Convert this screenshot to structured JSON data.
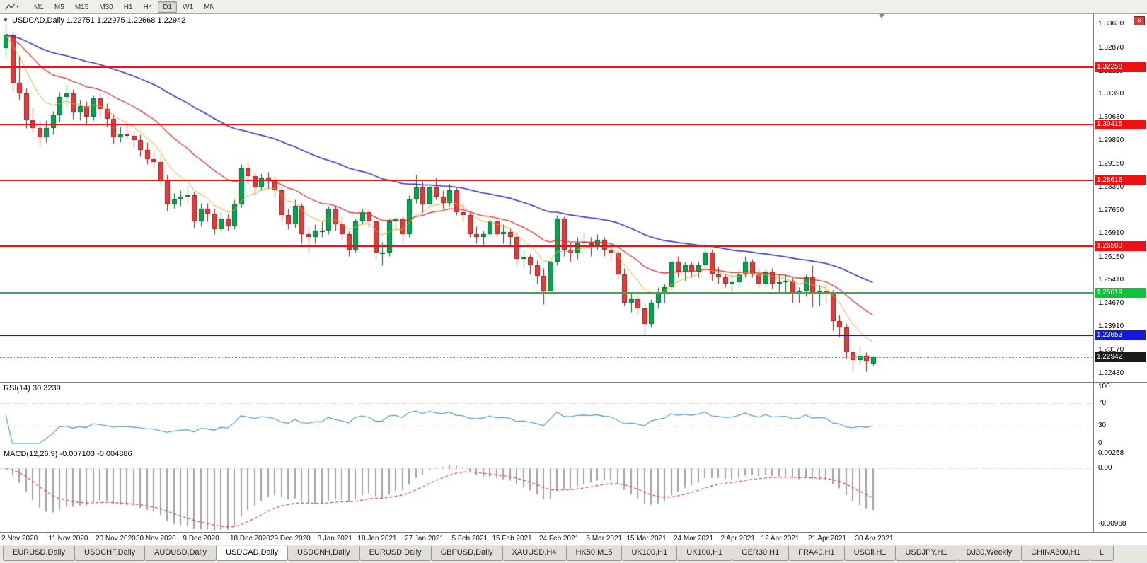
{
  "icons": {
    "collapse": "▼",
    "caret": "▾",
    "close": "✕"
  },
  "toolbar": {
    "timeframes": [
      "M1",
      "M5",
      "M15",
      "M30",
      "H1",
      "H4",
      "D1",
      "W1",
      "MN"
    ],
    "active_timeframe": "D1"
  },
  "window": {
    "close_label": "✕"
  },
  "colors": {
    "candle_up": "#00a651",
    "candle_up_border": "#00672f",
    "candle_down": "#e23b3b",
    "candle_down_border": "#941f1f",
    "axis_border": "#7e7e7e",
    "background": "#ffffff"
  },
  "tabs": {
    "items": [
      "EURUSD,Daily",
      "USDCHF,Daily",
      "AUDUSD,Daily",
      "USDCAD,Daily",
      "USDCNH,Daily",
      "EURUSD,Daily",
      "GBPUSD,Daily",
      "XAUUSD,H4",
      "HK50,M15",
      "UK100,H1",
      "UK100,H1",
      "GER30,H1",
      "FRA40,H1",
      "USOil,H1",
      "USDJPY,H1",
      "DJ30,Weekly",
      "CHINA300,H1",
      "L"
    ],
    "active_index": 3
  },
  "chart_data": {
    "type": "candlestick",
    "symbol": "USDCAD",
    "timeframe": "Daily",
    "title_line": "USDCAD,Daily 1.22751 1.22975 1.22668 1.22942",
    "current_ohlc": {
      "open": 1.22751,
      "high": 1.22975,
      "low": 1.22668,
      "close": 1.22942
    },
    "price_range": {
      "min": 1.2215,
      "max": 1.3395
    },
    "x_start": 8,
    "x_step": 9.5,
    "candle_width": 7,
    "y_ticks": [
      "1.33630",
      "1.32870",
      "1.32110",
      "1.31390",
      "1.30630",
      "1.29890",
      "1.29150",
      "1.28390",
      "1.27650",
      "1.26910",
      "1.26150",
      "1.25410",
      "1.24670",
      "1.23910",
      "1.23170",
      "1.22430"
    ],
    "x_ticks": {
      "indices": [
        0,
        7,
        14,
        20,
        27,
        34,
        40,
        47,
        53,
        60,
        67,
        73,
        80,
        87,
        93,
        100,
        107,
        113,
        120,
        127
      ],
      "labels": [
        "2 Nov 2020",
        "11 Nov 2020",
        "20 Nov 2020",
        "30 Nov 2020",
        "9 Dec 2020",
        "18 Dec 2020",
        "29 Dec 2020",
        "8 Jan 2021",
        "18 Jan 2021",
        "27 Jan 2021",
        "5 Feb 2021",
        "15 Feb 2021",
        "24 Feb 2021",
        "5 Mar 2021",
        "15 Mar 2021",
        "24 Mar 2021",
        "2 Apr 2021",
        "12 Apr 2021",
        "21 Apr 2021",
        "30 Apr 2021"
      ]
    },
    "candles": [
      [
        1.3285,
        1.3363,
        1.3255,
        1.333
      ],
      [
        1.333,
        1.334,
        1.315,
        1.3175
      ],
      [
        1.3175,
        1.326,
        1.312,
        1.314
      ],
      [
        1.314,
        1.316,
        1.303,
        1.3055
      ],
      [
        1.3055,
        1.3095,
        1.3015,
        1.303
      ],
      [
        1.303,
        1.3055,
        1.297,
        1.3
      ],
      [
        1.3,
        1.3055,
        1.2985,
        1.303
      ],
      [
        1.303,
        1.3085,
        1.301,
        1.307
      ],
      [
        1.307,
        1.3145,
        1.305,
        1.313
      ],
      [
        1.313,
        1.317,
        1.3095,
        1.314
      ],
      [
        1.314,
        1.3155,
        1.306,
        1.308
      ],
      [
        1.308,
        1.312,
        1.3055,
        1.31
      ],
      [
        1.31,
        1.3115,
        1.304,
        1.3065
      ],
      [
        1.3065,
        1.3135,
        1.3055,
        1.3125
      ],
      [
        1.3125,
        1.314,
        1.307,
        1.309
      ],
      [
        1.309,
        1.311,
        1.3035,
        1.306
      ],
      [
        1.306,
        1.3075,
        1.298,
        1.3
      ],
      [
        1.3,
        1.3035,
        1.2985,
        1.301
      ],
      [
        1.301,
        1.304,
        1.2995,
        1.3005
      ],
      [
        1.3005,
        1.302,
        1.2965,
        1.299
      ],
      [
        1.299,
        1.301,
        1.294,
        1.296
      ],
      [
        1.296,
        1.2985,
        1.2915,
        1.293
      ],
      [
        1.293,
        1.296,
        1.29,
        1.292
      ],
      [
        1.292,
        1.294,
        1.2845,
        1.286
      ],
      [
        1.286,
        1.288,
        1.2765,
        1.2785
      ],
      [
        1.2785,
        1.282,
        1.277,
        1.28
      ],
      [
        1.28,
        1.283,
        1.278,
        1.281
      ],
      [
        1.281,
        1.2845,
        1.279,
        1.2815
      ],
      [
        1.2815,
        1.2825,
        1.271,
        1.273
      ],
      [
        1.273,
        1.279,
        1.2715,
        1.277
      ],
      [
        1.277,
        1.279,
        1.273,
        1.2755
      ],
      [
        1.2755,
        1.277,
        1.269,
        1.2705
      ],
      [
        1.2705,
        1.276,
        1.2695,
        1.274
      ],
      [
        1.274,
        1.2755,
        1.27,
        1.2715
      ],
      [
        1.2715,
        1.28,
        1.2705,
        1.2785
      ],
      [
        1.2785,
        1.2915,
        1.2775,
        1.29
      ],
      [
        1.29,
        1.292,
        1.285,
        1.2875
      ],
      [
        1.2875,
        1.289,
        1.2815,
        1.284
      ],
      [
        1.284,
        1.2885,
        1.283,
        1.287
      ],
      [
        1.287,
        1.289,
        1.2835,
        1.286
      ],
      [
        1.286,
        1.2875,
        1.281,
        1.283
      ],
      [
        1.283,
        1.284,
        1.273,
        1.275
      ],
      [
        1.275,
        1.277,
        1.2705,
        1.272
      ],
      [
        1.272,
        1.28,
        1.271,
        1.278
      ],
      [
        1.278,
        1.279,
        1.266,
        1.269
      ],
      [
        1.269,
        1.2715,
        1.263,
        1.268
      ],
      [
        1.268,
        1.272,
        1.266,
        1.27
      ],
      [
        1.27,
        1.273,
        1.268,
        1.27
      ],
      [
        1.27,
        1.278,
        1.269,
        1.277
      ],
      [
        1.277,
        1.278,
        1.27,
        1.272
      ],
      [
        1.272,
        1.2745,
        1.267,
        1.269
      ],
      [
        1.269,
        1.27,
        1.262,
        1.264
      ],
      [
        1.264,
        1.274,
        1.263,
        1.273
      ],
      [
        1.273,
        1.277,
        1.272,
        1.276
      ],
      [
        1.276,
        1.277,
        1.271,
        1.273
      ],
      [
        1.273,
        1.274,
        1.261,
        1.263
      ],
      [
        1.263,
        1.2665,
        1.259,
        1.263
      ],
      [
        1.263,
        1.274,
        1.262,
        1.273
      ],
      [
        1.273,
        1.275,
        1.27,
        1.274
      ],
      [
        1.274,
        1.275,
        1.266,
        1.269
      ],
      [
        1.269,
        1.2815,
        1.268,
        1.28
      ],
      [
        1.28,
        1.288,
        1.279,
        1.284
      ],
      [
        1.284,
        1.286,
        1.276,
        1.2785
      ],
      [
        1.2785,
        1.285,
        1.2775,
        1.284
      ],
      [
        1.284,
        1.287,
        1.28,
        1.281
      ],
      [
        1.281,
        1.283,
        1.277,
        1.279
      ],
      [
        1.279,
        1.285,
        1.278,
        1.283
      ],
      [
        1.283,
        1.284,
        1.275,
        1.276
      ],
      [
        1.276,
        1.279,
        1.273,
        1.275
      ],
      [
        1.275,
        1.276,
        1.268,
        1.269
      ],
      [
        1.269,
        1.2715,
        1.266,
        1.268
      ],
      [
        1.268,
        1.27,
        1.265,
        1.269
      ],
      [
        1.269,
        1.274,
        1.268,
        1.273
      ],
      [
        1.273,
        1.274,
        1.268,
        1.269
      ],
      [
        1.269,
        1.272,
        1.266,
        1.2695
      ],
      [
        1.2695,
        1.271,
        1.265,
        1.268
      ],
      [
        1.268,
        1.2695,
        1.259,
        1.261
      ],
      [
        1.261,
        1.264,
        1.258,
        1.2615
      ],
      [
        1.2615,
        1.2625,
        1.256,
        1.259
      ],
      [
        1.259,
        1.2605,
        1.253,
        1.2555
      ],
      [
        1.2555,
        1.258,
        1.2465,
        1.2505
      ],
      [
        1.2505,
        1.261,
        1.2495,
        1.26
      ],
      [
        1.26,
        1.275,
        1.259,
        1.274
      ],
      [
        1.274,
        1.2745,
        1.262,
        1.264
      ],
      [
        1.264,
        1.2665,
        1.26,
        1.263
      ],
      [
        1.263,
        1.268,
        1.261,
        1.266
      ],
      [
        1.266,
        1.2695,
        1.264,
        1.2665
      ],
      [
        1.2665,
        1.268,
        1.262,
        1.2655
      ],
      [
        1.2655,
        1.269,
        1.264,
        1.267
      ],
      [
        1.267,
        1.268,
        1.262,
        1.264
      ],
      [
        1.264,
        1.266,
        1.26,
        1.263
      ],
      [
        1.263,
        1.264,
        1.2545,
        1.256
      ],
      [
        1.256,
        1.258,
        1.246,
        1.247
      ],
      [
        1.247,
        1.25,
        1.244,
        1.248
      ],
      [
        1.248,
        1.251,
        1.243,
        1.245
      ],
      [
        1.245,
        1.247,
        1.2365,
        1.24
      ],
      [
        1.24,
        1.248,
        1.239,
        1.247
      ],
      [
        1.247,
        1.252,
        1.245,
        1.25
      ],
      [
        1.25,
        1.253,
        1.247,
        1.252
      ],
      [
        1.252,
        1.261,
        1.251,
        1.26
      ],
      [
        1.26,
        1.262,
        1.255,
        1.257
      ],
      [
        1.257,
        1.26,
        1.254,
        1.259
      ],
      [
        1.259,
        1.26,
        1.255,
        1.257
      ],
      [
        1.257,
        1.26,
        1.255,
        1.259
      ],
      [
        1.259,
        1.265,
        1.258,
        1.263
      ],
      [
        1.263,
        1.264,
        1.254,
        1.256
      ],
      [
        1.256,
        1.2585,
        1.253,
        1.255
      ],
      [
        1.255,
        1.256,
        1.252,
        1.253
      ],
      [
        1.253,
        1.2565,
        1.25,
        1.2535
      ],
      [
        1.2535,
        1.2575,
        1.252,
        1.256
      ],
      [
        1.256,
        1.262,
        1.255,
        1.26
      ],
      [
        1.26,
        1.261,
        1.255,
        1.256
      ],
      [
        1.256,
        1.258,
        1.252,
        1.253
      ],
      [
        1.253,
        1.258,
        1.252,
        1.257
      ],
      [
        1.257,
        1.258,
        1.2515,
        1.253
      ],
      [
        1.253,
        1.256,
        1.25,
        1.2535
      ],
      [
        1.2535,
        1.256,
        1.25,
        1.254
      ],
      [
        1.254,
        1.255,
        1.247,
        1.25
      ],
      [
        1.25,
        1.252,
        1.247,
        1.2505
      ],
      [
        1.2505,
        1.256,
        1.249,
        1.255
      ],
      [
        1.255,
        1.259,
        1.2455,
        1.25
      ],
      [
        1.25,
        1.2525,
        1.246,
        1.2505
      ],
      [
        1.2505,
        1.253,
        1.247,
        1.25
      ],
      [
        1.25,
        1.251,
        1.238,
        1.241
      ],
      [
        1.241,
        1.243,
        1.236,
        1.239
      ],
      [
        1.239,
        1.24,
        1.229,
        1.231
      ],
      [
        1.231,
        1.232,
        1.225,
        1.2285
      ],
      [
        1.2285,
        1.233,
        1.227,
        1.23
      ],
      [
        1.23,
        1.231,
        1.225,
        1.228
      ],
      [
        1.22751,
        1.22975,
        1.22668,
        1.22942
      ]
    ],
    "moving_averages": [
      {
        "name": "fast-ma",
        "period": 8,
        "color": "#f2a227",
        "width": 1
      },
      {
        "name": "mid-ma",
        "period": 21,
        "color": "#e32b2b",
        "width": 1.3
      },
      {
        "name": "slow-ma",
        "period": 55,
        "color": "#2d36c8",
        "width": 1.6
      }
    ],
    "levels": [
      {
        "value": 1.32258,
        "label": "1.32258",
        "color": "#ee1111"
      },
      {
        "value": 1.30415,
        "label": "1.30415",
        "color": "#ee1111"
      },
      {
        "value": 1.28616,
        "label": "1.28616",
        "color": "#ee1111"
      },
      {
        "value": 1.26503,
        "label": "1.26503",
        "color": "#ee1111"
      },
      {
        "value": 1.25019,
        "label": "1.25019",
        "color": "#11c23c"
      },
      {
        "value": 1.23653,
        "label": "1.23653",
        "color": "#1616e0"
      }
    ],
    "bid": {
      "value": 1.22942,
      "label": "1.22942",
      "badge_color": "#1b1b1b"
    },
    "rsi": {
      "label": "RSI(14) 30.3239",
      "period": 14,
      "value": 30.3239,
      "color": "#3f8ec6",
      "range": [
        0,
        100
      ],
      "grid_levels": [
        70,
        30
      ],
      "axis_ticks": [
        {
          "value": 100,
          "label": "100"
        },
        {
          "value": 70,
          "label": "70"
        },
        {
          "value": 30,
          "label": "30"
        },
        {
          "value": 0,
          "label": "0"
        }
      ]
    },
    "macd": {
      "label": "MACD(12,26,9) -0.007103 -0.004886",
      "fast": 12,
      "slow": 26,
      "signal": 9,
      "main_value": -0.007103,
      "signal_value": -0.004886,
      "histogram_color": "#a0a0a0",
      "signal_color": "#e03030",
      "range": {
        "min": -0.0105,
        "max": 0.003
      },
      "axis_ticks": [
        {
          "value": 0.00258,
          "label": "0.00258"
        },
        {
          "value": 0,
          "label": "0.00"
        },
        {
          "value": -0.00968,
          "label": "-0.00968"
        }
      ]
    }
  }
}
